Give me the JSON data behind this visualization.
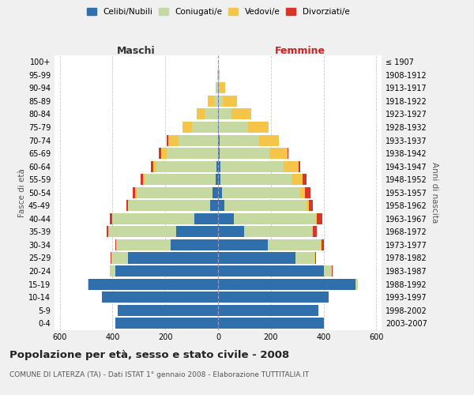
{
  "age_groups": [
    "0-4",
    "5-9",
    "10-14",
    "15-19",
    "20-24",
    "25-29",
    "30-34",
    "35-39",
    "40-44",
    "45-49",
    "50-54",
    "55-59",
    "60-64",
    "65-69",
    "70-74",
    "75-79",
    "80-84",
    "85-89",
    "90-94",
    "95-99",
    "100+"
  ],
  "birth_years": [
    "2003-2007",
    "1998-2002",
    "1993-1997",
    "1988-1992",
    "1983-1987",
    "1978-1982",
    "1973-1977",
    "1968-1972",
    "1963-1967",
    "1958-1962",
    "1953-1957",
    "1948-1952",
    "1943-1947",
    "1938-1942",
    "1933-1937",
    "1928-1932",
    "1923-1927",
    "1918-1922",
    "1913-1917",
    "1908-1912",
    "≤ 1907"
  ],
  "male": {
    "celibi": [
      390,
      380,
      440,
      490,
      390,
      340,
      180,
      160,
      90,
      30,
      20,
      10,
      5,
      0,
      0,
      0,
      0,
      0,
      0,
      0,
      0
    ],
    "coniugati": [
      0,
      0,
      0,
      5,
      20,
      65,
      205,
      255,
      310,
      310,
      290,
      270,
      230,
      195,
      150,
      100,
      50,
      15,
      5,
      2,
      0
    ],
    "vedovi": [
      0,
      0,
      0,
      0,
      0,
      0,
      0,
      1,
      1,
      2,
      3,
      5,
      10,
      20,
      40,
      35,
      30,
      25,
      5,
      2,
      0
    ],
    "divorziati": [
      0,
      0,
      0,
      0,
      0,
      2,
      5,
      5,
      8,
      5,
      10,
      10,
      10,
      10,
      5,
      0,
      0,
      0,
      0,
      0,
      0
    ]
  },
  "female": {
    "nubili": [
      400,
      380,
      420,
      520,
      400,
      295,
      190,
      100,
      60,
      25,
      15,
      10,
      10,
      5,
      5,
      3,
      2,
      2,
      2,
      0,
      0
    ],
    "coniugate": [
      0,
      0,
      0,
      10,
      30,
      70,
      200,
      255,
      310,
      310,
      295,
      270,
      240,
      190,
      150,
      110,
      50,
      15,
      5,
      2,
      0
    ],
    "vedove": [
      0,
      0,
      0,
      0,
      1,
      2,
      2,
      3,
      5,
      10,
      20,
      40,
      55,
      70,
      75,
      80,
      75,
      55,
      20,
      5,
      0
    ],
    "divorziate": [
      0,
      0,
      0,
      0,
      2,
      5,
      10,
      15,
      20,
      15,
      20,
      15,
      5,
      2,
      2,
      0,
      0,
      0,
      0,
      0,
      0
    ]
  },
  "colors": {
    "celibi": "#2e6fac",
    "coniugati": "#c5d9a0",
    "vedovi": "#f5c54a",
    "divorziati": "#d9342a"
  },
  "title": "Popolazione per età, sesso e stato civile - 2008",
  "subtitle": "COMUNE DI LATERZA (TA) - Dati ISTAT 1° gennaio 2008 - Elaborazione TUTTITALIA.IT",
  "xlabel_left": "Maschi",
  "xlabel_right": "Femmine",
  "ylabel_left": "Fasce di età",
  "ylabel_right": "Anni di nascita",
  "xlim": 620,
  "bg_color": "#f0f0f0",
  "plot_bg": "#ffffff"
}
